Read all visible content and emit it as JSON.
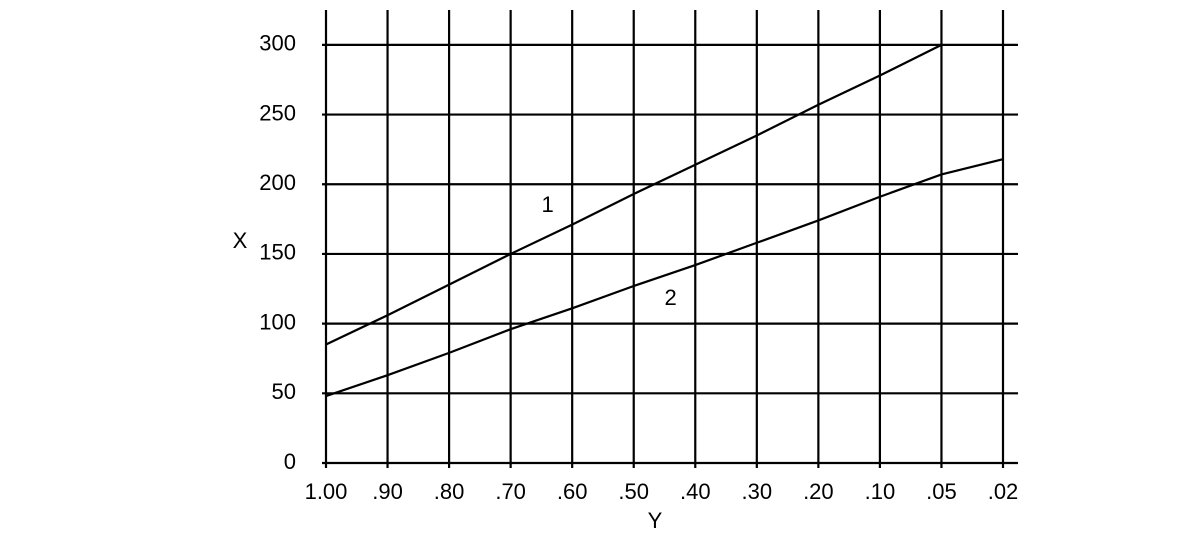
{
  "chart_data": {
    "type": "line",
    "x_label": "Y",
    "y_label": "X",
    "categories": [
      "1.00",
      ".90",
      ".80",
      ".70",
      ".60",
      ".50",
      ".40",
      ".30",
      ".20",
      ".10",
      ".05",
      ".02"
    ],
    "series": [
      {
        "name": "1",
        "color": "#000000",
        "values": [
          85,
          106,
          128,
          150,
          171,
          193,
          214,
          235,
          257,
          278,
          300,
          null
        ]
      },
      {
        "name": "2",
        "color": "#000000",
        "values": [
          48,
          63,
          79,
          96,
          111,
          127,
          142,
          158,
          174,
          191,
          207,
          218
        ]
      }
    ],
    "ylim": [
      0,
      325
    ],
    "yticks": [
      0,
      50,
      100,
      150,
      200,
      250,
      300
    ],
    "grid": true
  }
}
